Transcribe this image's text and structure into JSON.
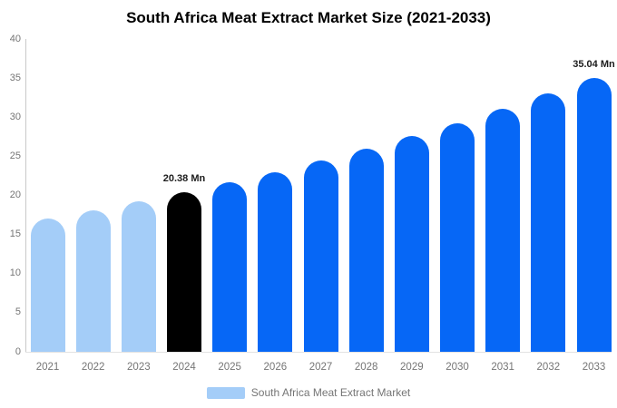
{
  "chart_data": {
    "type": "bar",
    "title": "South Africa Meat Extract Market Size (2021-2033)",
    "xlabel": "",
    "ylabel": "",
    "unit": "Mn",
    "categories": [
      "2021",
      "2022",
      "2023",
      "2024",
      "2025",
      "2026",
      "2027",
      "2028",
      "2029",
      "2030",
      "2031",
      "2032",
      "2033"
    ],
    "values": [
      17.01,
      18.07,
      19.19,
      20.38,
      21.65,
      22.99,
      24.42,
      25.93,
      27.54,
      29.25,
      31.07,
      32.99,
      35.04
    ],
    "bar_colors": [
      "#a4cdf8",
      "#a4cdf8",
      "#a4cdf8",
      "#000000",
      "#0667f6",
      "#0667f6",
      "#0667f6",
      "#0667f6",
      "#0667f6",
      "#0667f6",
      "#0667f6",
      "#0667f6",
      "#0667f6"
    ],
    "data_labels": [
      {
        "category": "2024",
        "text": "20.38 Mn"
      },
      {
        "category": "2033",
        "text": "35.04 Mn"
      }
    ],
    "ylim": [
      0,
      40
    ],
    "yticks": [
      0,
      5,
      10,
      15,
      20,
      25,
      30,
      35,
      40
    ],
    "grid": false,
    "legend": {
      "position": "bottom",
      "label": "South Africa Meat Extract Market",
      "swatch_color": "#a4cdf8"
    },
    "colors": {
      "historical": "#a4cdf8",
      "highlight": "#000000",
      "forecast": "#0667f6",
      "axis_text": "#757575",
      "axis_line": "#c9c9c9",
      "title_text": "#000000"
    }
  }
}
